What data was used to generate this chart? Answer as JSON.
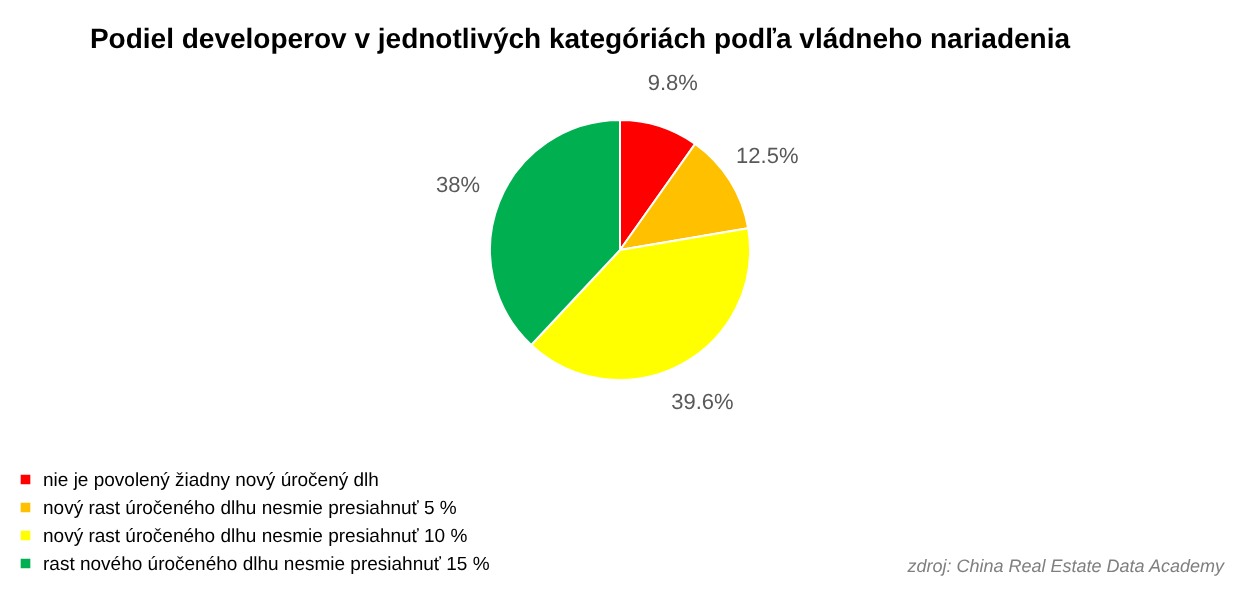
{
  "chart_data": {
    "type": "pie",
    "title": "Podiel developerov v jednotlivých kategóriách podľa vládneho nariadenia",
    "categories": [
      "nie je povolený žiadny nový úročený dlh",
      "nový rast úročeného dlhu nesmie presiahnuť 5 %",
      "nový rast úročeného dlhu nesmie presiahnuť 10 %",
      "rast nového úročeného dlhu nesmie presiahnuť 15 %"
    ],
    "values": [
      9.8,
      12.5,
      39.6,
      38
    ],
    "value_labels": [
      "9.8%",
      "12.5%",
      "39.6%",
      "38%"
    ],
    "colors": [
      "#ff0000",
      "#ffc000",
      "#ffff00",
      "#00b050"
    ],
    "legend": "bottom left",
    "annotations": [
      "zdroj: China Real Estate Data Academy"
    ]
  }
}
